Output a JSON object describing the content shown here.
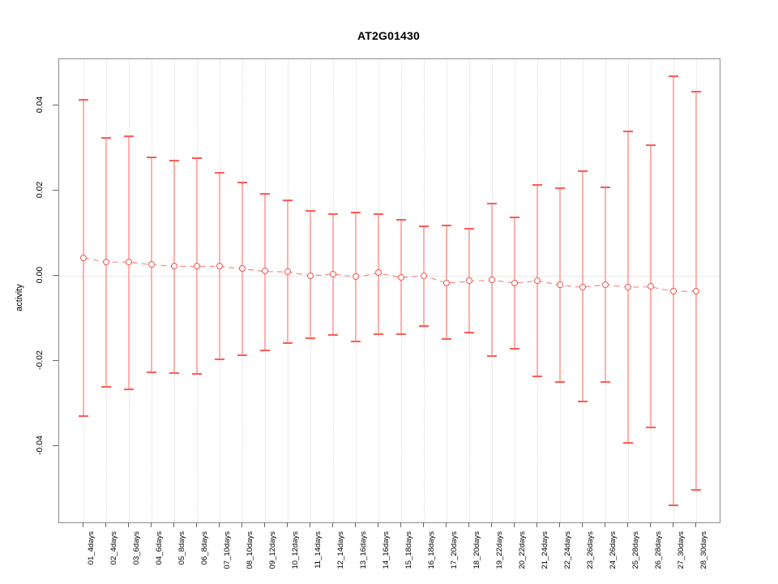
{
  "title": "AT2G01430",
  "chart_data": {
    "type": "line",
    "subtype": "points-with-error-bars",
    "title": "AT2G01430",
    "xlabel": "",
    "ylabel": "activity",
    "ylim": [
      -0.058,
      0.051
    ],
    "yticks": [
      0.04,
      0.02,
      0.0,
      -0.02,
      -0.04
    ],
    "ytick_labels": [
      "0.04",
      "0.02",
      "0.00",
      "-0.02",
      "-0.04"
    ],
    "zero_reference_line": 0.0,
    "grid": "vertical dotted gridline at every category; dotted horizontal line at y=0",
    "legend": "none",
    "categories": [
      "01_4days",
      "02_4days",
      "03_6days",
      "04_6days",
      "05_8days",
      "06_8days",
      "07_10days",
      "08_10days",
      "09_12days",
      "10_12days",
      "11_14days",
      "12_14days",
      "13_16days",
      "14_16days",
      "15_18days",
      "16_18days",
      "17_20days",
      "18_20days",
      "19_22days",
      "20_22days",
      "21_24days",
      "22_24days",
      "23_26days",
      "24_26days",
      "25_28days",
      "26_28days",
      "27_30days",
      "28_30days"
    ],
    "series": [
      {
        "name": "activity",
        "centers": [
          0.0042,
          0.0032,
          0.0032,
          0.0026,
          0.0022,
          0.0022,
          0.0022,
          0.0016,
          0.001,
          0.0009,
          0.0,
          0.0004,
          -0.0003,
          0.0006,
          -0.0004,
          0.0,
          -0.0017,
          -0.0013,
          -0.001,
          -0.0017,
          -0.0012,
          -0.0022,
          -0.0027,
          -0.0021,
          -0.0027,
          -0.0026,
          -0.0037,
          -0.0036
        ],
        "upper": [
          0.0413,
          0.0323,
          0.0327,
          0.0279,
          0.0271,
          0.0276,
          0.0241,
          0.0219,
          0.0193,
          0.0178,
          0.0152,
          0.0145,
          0.0149,
          0.0145,
          0.0131,
          0.0116,
          0.0118,
          0.011,
          0.017,
          0.0138,
          0.0214,
          0.0206,
          0.0246,
          0.0208,
          0.034,
          0.0306,
          0.0469,
          0.0432
        ],
        "lower": [
          -0.033,
          -0.0261,
          -0.0267,
          -0.0226,
          -0.0229,
          -0.023,
          -0.0196,
          -0.0186,
          -0.0175,
          -0.0158,
          -0.0147,
          -0.0139,
          -0.0154,
          -0.0137,
          -0.0137,
          -0.0118,
          -0.0149,
          -0.0133,
          -0.0188,
          -0.0171,
          -0.0236,
          -0.0249,
          -0.0296,
          -0.025,
          -0.0392,
          -0.0356,
          -0.0539,
          -0.0503
        ]
      }
    ],
    "colors": {
      "error_bar_line": "#ffb0ac",
      "error_bar_cap": "#ff5b55",
      "marker_outline": "#f2564f",
      "connector_dash": "#f98b86",
      "grid": "#dcdcdc",
      "frame": "#8c8c8c",
      "axis_tick": "#666666",
      "text": "#000000"
    }
  }
}
